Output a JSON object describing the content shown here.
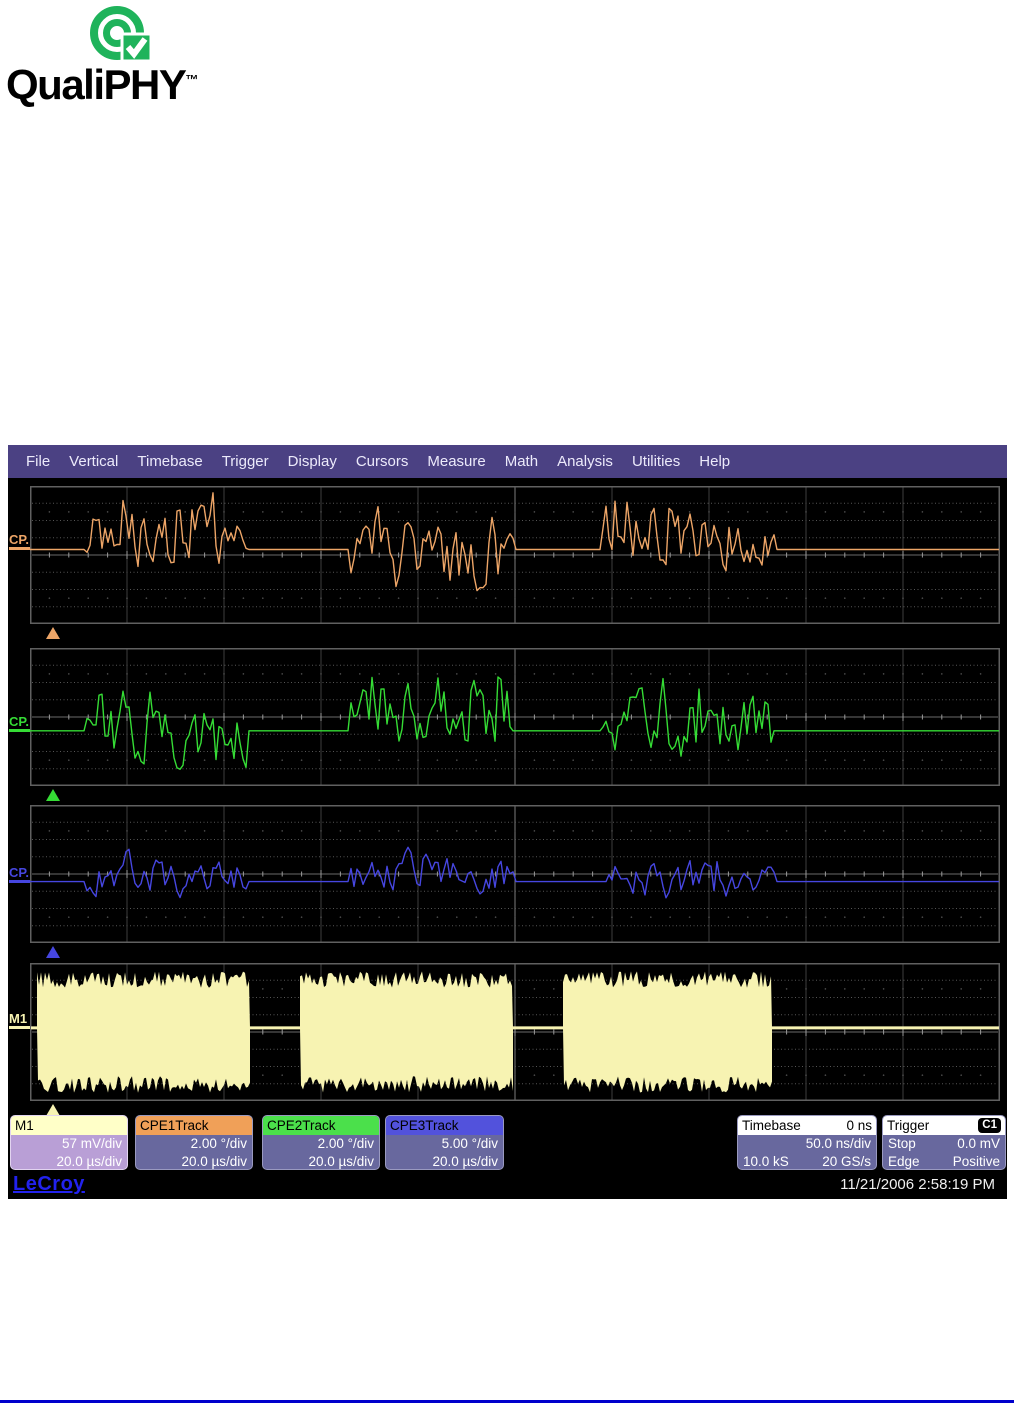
{
  "page": {
    "footer_rule_color": "#0000cc",
    "background": "#ffffff"
  },
  "logo": {
    "wordmark": "QualiPHY",
    "trademark": "™",
    "green": "#1fb35b"
  },
  "scope": {
    "menu_bar": {
      "bg": "#4b4183",
      "items": [
        "File",
        "Vertical",
        "Timebase",
        "Trigger",
        "Display",
        "Cursors",
        "Measure",
        "Math",
        "Analysis",
        "Utilities",
        "Help"
      ]
    },
    "panels": [
      {
        "label": "CP.",
        "color": "#eda567",
        "baseline": 0.46,
        "amp": 0.3,
        "kind": "track",
        "bursts": [
          [
            0.057,
            0.225
          ],
          [
            0.33,
            0.5
          ],
          [
            0.59,
            0.77
          ]
        ],
        "bias": [
          0.25,
          -0.25,
          0.35
        ],
        "seed": 17
      },
      {
        "label": "CP.",
        "color": "#35dc35",
        "baseline": 0.6,
        "amp": 0.32,
        "kind": "track",
        "bursts": [
          [
            0.057,
            0.225
          ],
          [
            0.33,
            0.495
          ],
          [
            0.59,
            0.765
          ]
        ],
        "bias": [
          -0.15,
          0.45,
          0.05
        ],
        "seed": 29
      },
      {
        "label": "CP.",
        "color": "#4646e0",
        "baseline": 0.555,
        "amp": 0.17,
        "kind": "track",
        "bursts": [
          [
            0.057,
            0.225
          ],
          [
            0.33,
            0.5
          ],
          [
            0.595,
            0.77
          ]
        ],
        "bias": [
          0.1,
          0.3,
          -0.05
        ],
        "seed": 41
      },
      {
        "label": "M1",
        "color": "#f7f3b2",
        "baseline": 0.47,
        "amp": 0.4,
        "kind": "burst",
        "bursts": [
          [
            0.007,
            0.227
          ],
          [
            0.278,
            0.498
          ],
          [
            0.549,
            0.765
          ]
        ],
        "bias": [
          0,
          0,
          0
        ],
        "seed": 53
      }
    ],
    "descriptors": [
      {
        "title": "M1",
        "header_bg": "#ffffc8",
        "body_bg": "#b99fd6",
        "border": "#e2d4f0",
        "rows": [
          "57 mV/div",
          "20.0 µs/div"
        ]
      },
      {
        "title": "CPE1Track",
        "header_bg": "#f0a058",
        "body_bg": "#68689e",
        "border": "#9a9ac0",
        "rows": [
          "2.00 °/div",
          "20.0 µs/div"
        ]
      },
      {
        "title": "CPE2Track",
        "header_bg": "#4be04b",
        "body_bg": "#68689e",
        "border": "#9a9ac0",
        "rows": [
          "2.00 °/div",
          "20.0 µs/div"
        ]
      },
      {
        "title": "CPE3Track",
        "header_bg": "#5252dc",
        "body_bg": "#68689e",
        "border": "#9a9ac0",
        "rows": [
          "5.00 °/div",
          "20.0 µs/div"
        ]
      }
    ],
    "timebase_box": {
      "title": "Timebase",
      "value": "0 ns",
      "rows": [
        [
          "",
          "50.0 ns/div"
        ],
        [
          "10.0 kS",
          "20 GS/s"
        ]
      ]
    },
    "trigger_box": {
      "title": "Trigger",
      "badge": "C1",
      "rows": [
        [
          "Stop",
          "0.0 mV"
        ],
        [
          "Edge",
          "Positive"
        ]
      ]
    },
    "footer": {
      "brand": "LeCroy",
      "timestamp": "11/21/2006 2:58:19 PM"
    }
  }
}
